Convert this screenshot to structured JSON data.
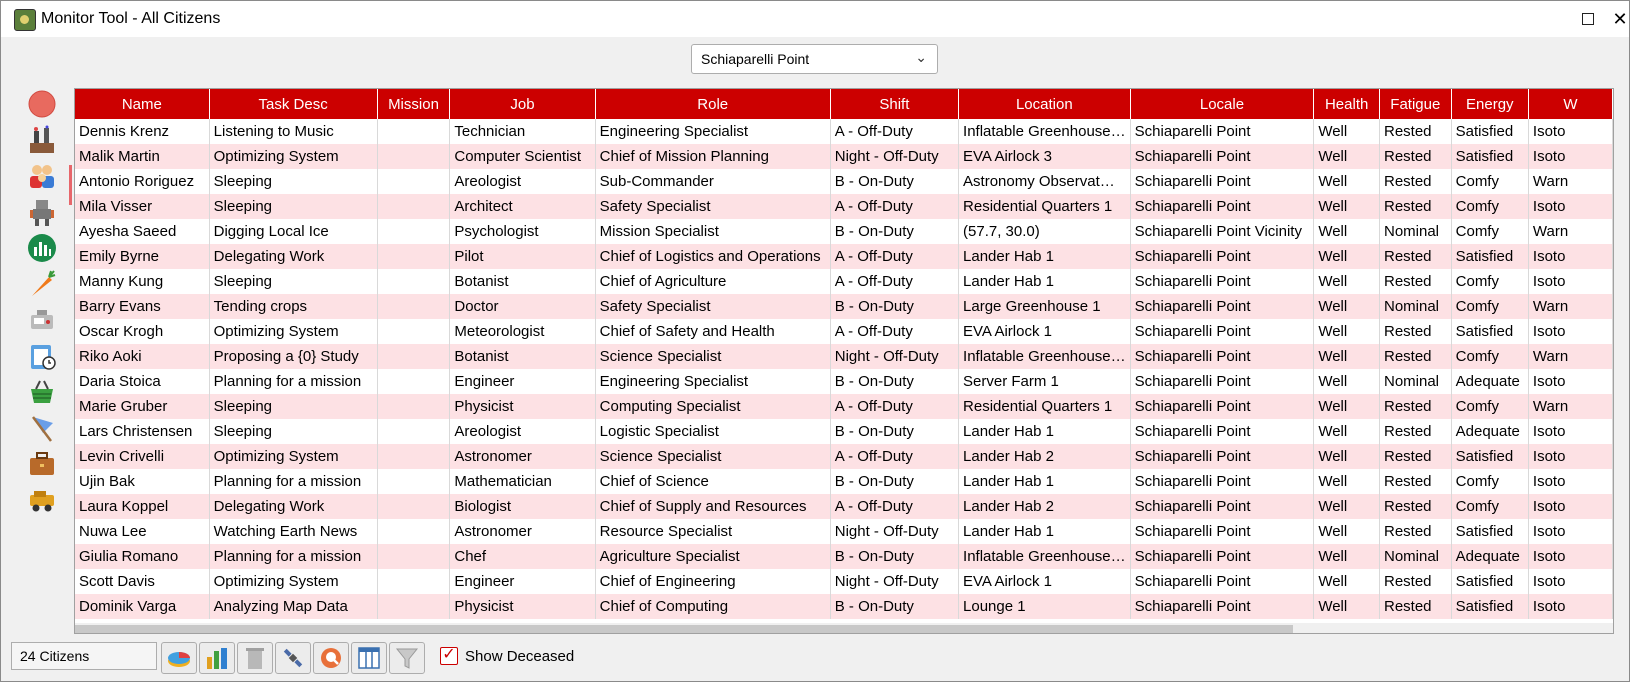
{
  "window": {
    "title": "Monitor Tool - All Citizens",
    "close_glyph": "✕"
  },
  "settlement_selector": {
    "value": "Schiaparelli Point",
    "chevron": "⌄"
  },
  "sidebar": {
    "icons": [
      "settlement-icon",
      "buildings-icon",
      "citizens-icon",
      "robots-icon",
      "power-icon",
      "food-icon",
      "bots-icon",
      "schedule-icon",
      "trade-icon",
      "missions-icon",
      "jobs-icon",
      "vehicles-icon"
    ],
    "selected": "citizens-icon"
  },
  "table": {
    "columns": [
      "Name",
      "Task Desc",
      "Mission",
      "Job",
      "Role",
      "Shift",
      "Location",
      "Locale",
      "Health",
      "Fatigue",
      "Energy",
      "W"
    ],
    "rows": [
      [
        "Dennis Krenz",
        "Listening to Music",
        "",
        "Technician",
        "Engineering Specialist",
        "A - Off-Duty",
        "Inflatable Greenhouse…",
        "Schiaparelli Point",
        "Well",
        "Rested",
        "Satisfied",
        "Isoto"
      ],
      [
        "Malik Martin",
        "Optimizing System",
        "",
        "Computer Scientist",
        "Chief of Mission Planning",
        "Night - Off-Duty",
        "EVA Airlock 3",
        "Schiaparelli Point",
        "Well",
        "Rested",
        "Satisfied",
        "Isoto"
      ],
      [
        "Antonio Roriguez",
        "Sleeping",
        "",
        "Areologist",
        "Sub-Commander",
        "B - On-Duty",
        "Astronomy Observat…",
        "Schiaparelli Point",
        "Well",
        "Rested",
        "Comfy",
        "Warn"
      ],
      [
        "Mila Visser",
        "Sleeping",
        "",
        "Architect",
        "Safety Specialist",
        "A - Off-Duty",
        "Residential Quarters 1",
        "Schiaparelli Point",
        "Well",
        "Rested",
        "Comfy",
        "Isoto"
      ],
      [
        "Ayesha Saeed",
        "Digging Local Ice",
        "",
        "Psychologist",
        "Mission Specialist",
        "B - On-Duty",
        "(57.7, 30.0)",
        "Schiaparelli Point Vicinity",
        "Well",
        "Nominal",
        "Comfy",
        "Warn"
      ],
      [
        "Emily Byrne",
        "Delegating Work",
        "",
        "Pilot",
        "Chief of Logistics and Operations",
        "A - Off-Duty",
        "Lander Hab 1",
        "Schiaparelli Point",
        "Well",
        "Rested",
        "Satisfied",
        "Isoto"
      ],
      [
        "Manny Kung",
        "Sleeping",
        "",
        "Botanist",
        "Chief of Agriculture",
        "A - Off-Duty",
        "Lander Hab 1",
        "Schiaparelli Point",
        "Well",
        "Rested",
        "Comfy",
        "Isoto"
      ],
      [
        "Barry Evans",
        "Tending crops",
        "",
        "Doctor",
        "Safety Specialist",
        "B - On-Duty",
        "Large Greenhouse 1",
        "Schiaparelli Point",
        "Well",
        "Nominal",
        "Comfy",
        "Warn"
      ],
      [
        "Oscar Krogh",
        "Optimizing System",
        "",
        "Meteorologist",
        "Chief of Safety and Health",
        "A - Off-Duty",
        "EVA Airlock 1",
        "Schiaparelli Point",
        "Well",
        "Rested",
        "Satisfied",
        "Isoto"
      ],
      [
        "Riko Aoki",
        "Proposing a {0} Study",
        "",
        "Botanist",
        "Science Specialist",
        "Night - Off-Duty",
        "Inflatable Greenhouse…",
        "Schiaparelli Point",
        "Well",
        "Rested",
        "Comfy",
        "Warn"
      ],
      [
        "Daria Stoica",
        "Planning for a mission",
        "",
        "Engineer",
        "Engineering Specialist",
        "B - On-Duty",
        "Server Farm 1",
        "Schiaparelli Point",
        "Well",
        "Nominal",
        "Adequate",
        "Isoto"
      ],
      [
        "Marie Gruber",
        "Sleeping",
        "",
        "Physicist",
        "Computing Specialist",
        "A - Off-Duty",
        "Residential Quarters 1",
        "Schiaparelli Point",
        "Well",
        "Rested",
        "Comfy",
        "Warn"
      ],
      [
        "Lars Christensen",
        "Sleeping",
        "",
        "Areologist",
        "Logistic Specialist",
        "B - On-Duty",
        "Lander Hab 1",
        "Schiaparelli Point",
        "Well",
        "Rested",
        "Adequate",
        "Isoto"
      ],
      [
        "Levin Crivelli",
        "Optimizing System",
        "",
        "Astronomer",
        "Science Specialist",
        "A - Off-Duty",
        "Lander Hab 2",
        "Schiaparelli Point",
        "Well",
        "Rested",
        "Satisfied",
        "Isoto"
      ],
      [
        "Ujin Bak",
        "Planning for a mission",
        "",
        "Mathematician",
        "Chief of Science",
        "B - On-Duty",
        "Lander Hab 1",
        "Schiaparelli Point",
        "Well",
        "Rested",
        "Comfy",
        "Isoto"
      ],
      [
        "Laura Koppel",
        "Delegating Work",
        "",
        "Biologist",
        "Chief of Supply and Resources",
        "A - Off-Duty",
        "Lander Hab 2",
        "Schiaparelli Point",
        "Well",
        "Rested",
        "Comfy",
        "Isoto"
      ],
      [
        "Nuwa Lee",
        "Watching Earth News",
        "",
        "Astronomer",
        "Resource Specialist",
        "Night - Off-Duty",
        "Lander Hab 1",
        "Schiaparelli Point",
        "Well",
        "Rested",
        "Satisfied",
        "Isoto"
      ],
      [
        "Giulia Romano",
        "Planning for a mission",
        "",
        "Chef",
        "Agriculture Specialist",
        "B - On-Duty",
        "Inflatable Greenhouse…",
        "Schiaparelli Point",
        "Well",
        "Nominal",
        "Adequate",
        "Isoto"
      ],
      [
        "Scott Davis",
        "Optimizing System",
        "",
        "Engineer",
        "Chief of Engineering",
        "Night - Off-Duty",
        "EVA Airlock 1",
        "Schiaparelli Point",
        "Well",
        "Rested",
        "Satisfied",
        "Isoto"
      ],
      [
        "Dominik Varga",
        "Analyzing Map Data",
        "",
        "Physicist",
        "Chief of Computing",
        "B - On-Duty",
        "Lounge 1",
        "Schiaparelli Point",
        "Well",
        "Rested",
        "Satisfied",
        "Isoto"
      ]
    ]
  },
  "footer": {
    "citizen_count": "24 Citizens",
    "tools": [
      "pie-chart-icon",
      "bar-chart-icon",
      "trash-icon",
      "satellite-icon",
      "search-icon",
      "columns-icon",
      "filter-icon"
    ],
    "show_deceased_label": "Show Deceased",
    "show_deceased_checked": true,
    "check_glyph": "✓"
  },
  "colors": {
    "header_bg": "#cc0000",
    "row_alt": "#fde1e4",
    "accent": "#e7666b"
  }
}
